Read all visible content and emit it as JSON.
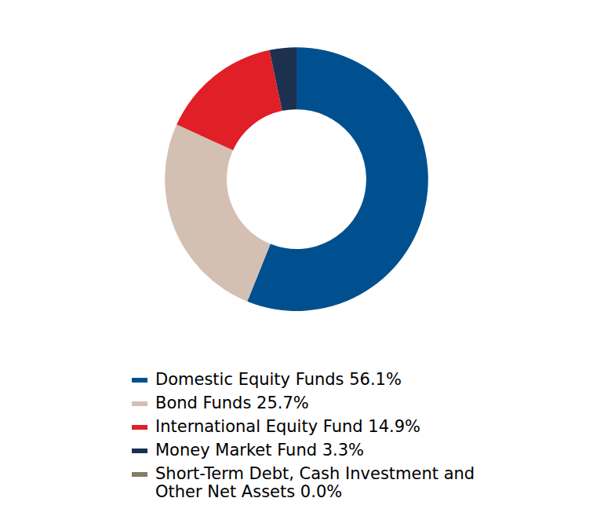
{
  "chart_data": {
    "type": "pie",
    "categories": [
      "Domestic Equity Funds 56.1%",
      "Bond Funds 25.7%",
      "International Equity Fund 14.9%",
      "Money Market Fund 3.3%",
      "Short-Term Debt, Cash Investment and Other Net Assets 0.0%"
    ],
    "values": [
      56.1,
      25.7,
      14.9,
      3.3,
      0.0
    ],
    "colors": [
      "#00508f",
      "#d4c0b2",
      "#e01f26",
      "#1e3050",
      "#857b69"
    ],
    "legend": "bottom"
  }
}
